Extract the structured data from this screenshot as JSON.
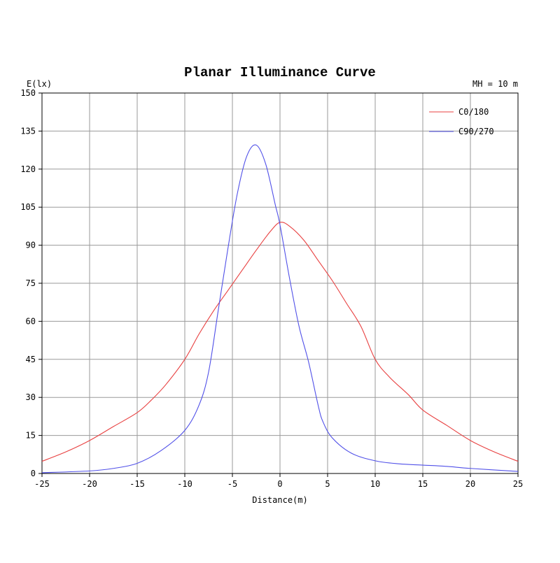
{
  "chart_data": {
    "type": "line",
    "title": "Planar Illuminance Curve",
    "ylabel": "E(lx)",
    "xlabel": "Distance(m)",
    "annotation": "MH = 10 m",
    "xlim": [
      -25,
      25
    ],
    "ylim": [
      0,
      150
    ],
    "xticks": [
      -25,
      -20,
      -15,
      -10,
      -5,
      0,
      5,
      10,
      15,
      20,
      25
    ],
    "yticks": [
      0,
      15,
      30,
      45,
      60,
      75,
      90,
      105,
      120,
      135,
      150
    ],
    "grid": true,
    "legend_position": "top-right",
    "series": [
      {
        "name": "C0/180",
        "color": "#e84040",
        "x": [
          -25,
          -22.5,
          -20,
          -17.5,
          -15,
          -13.5,
          -12,
          -10,
          -8.5,
          -7,
          -5.5,
          -4,
          -2.5,
          -1,
          0,
          1,
          2.5,
          4,
          5.5,
          7,
          8.5,
          10,
          11.5,
          13.5,
          15,
          17.5,
          20,
          22.5,
          25
        ],
        "y": [
          4.8,
          8.5,
          13,
          18.5,
          24,
          29,
          35,
          45,
          55,
          64,
          72,
          80,
          88,
          95.5,
          99,
          97.5,
          92,
          84,
          76,
          67,
          58,
          45,
          38,
          31,
          25,
          19,
          13,
          8.5,
          4.8
        ]
      },
      {
        "name": "C90/270",
        "color": "#5050e8",
        "x": [
          -25,
          -20,
          -17.5,
          -15,
          -12.5,
          -10,
          -8.5,
          -7.5,
          -6.5,
          -5.5,
          -4.5,
          -3.5,
          -2.5,
          -1.5,
          -0.5,
          0,
          1,
          2,
          3,
          4,
          4.5,
          5.5,
          7.5,
          10,
          12.5,
          15,
          17.5,
          20,
          25
        ],
        "y": [
          0.3,
          1,
          2,
          4,
          9,
          17,
          27,
          40,
          64,
          88,
          110,
          125,
          129.5,
          122,
          106,
          98,
          77,
          58,
          44,
          27,
          20.5,
          14,
          8,
          5,
          3.8,
          3.3,
          2.8,
          2,
          0.8
        ]
      }
    ]
  }
}
